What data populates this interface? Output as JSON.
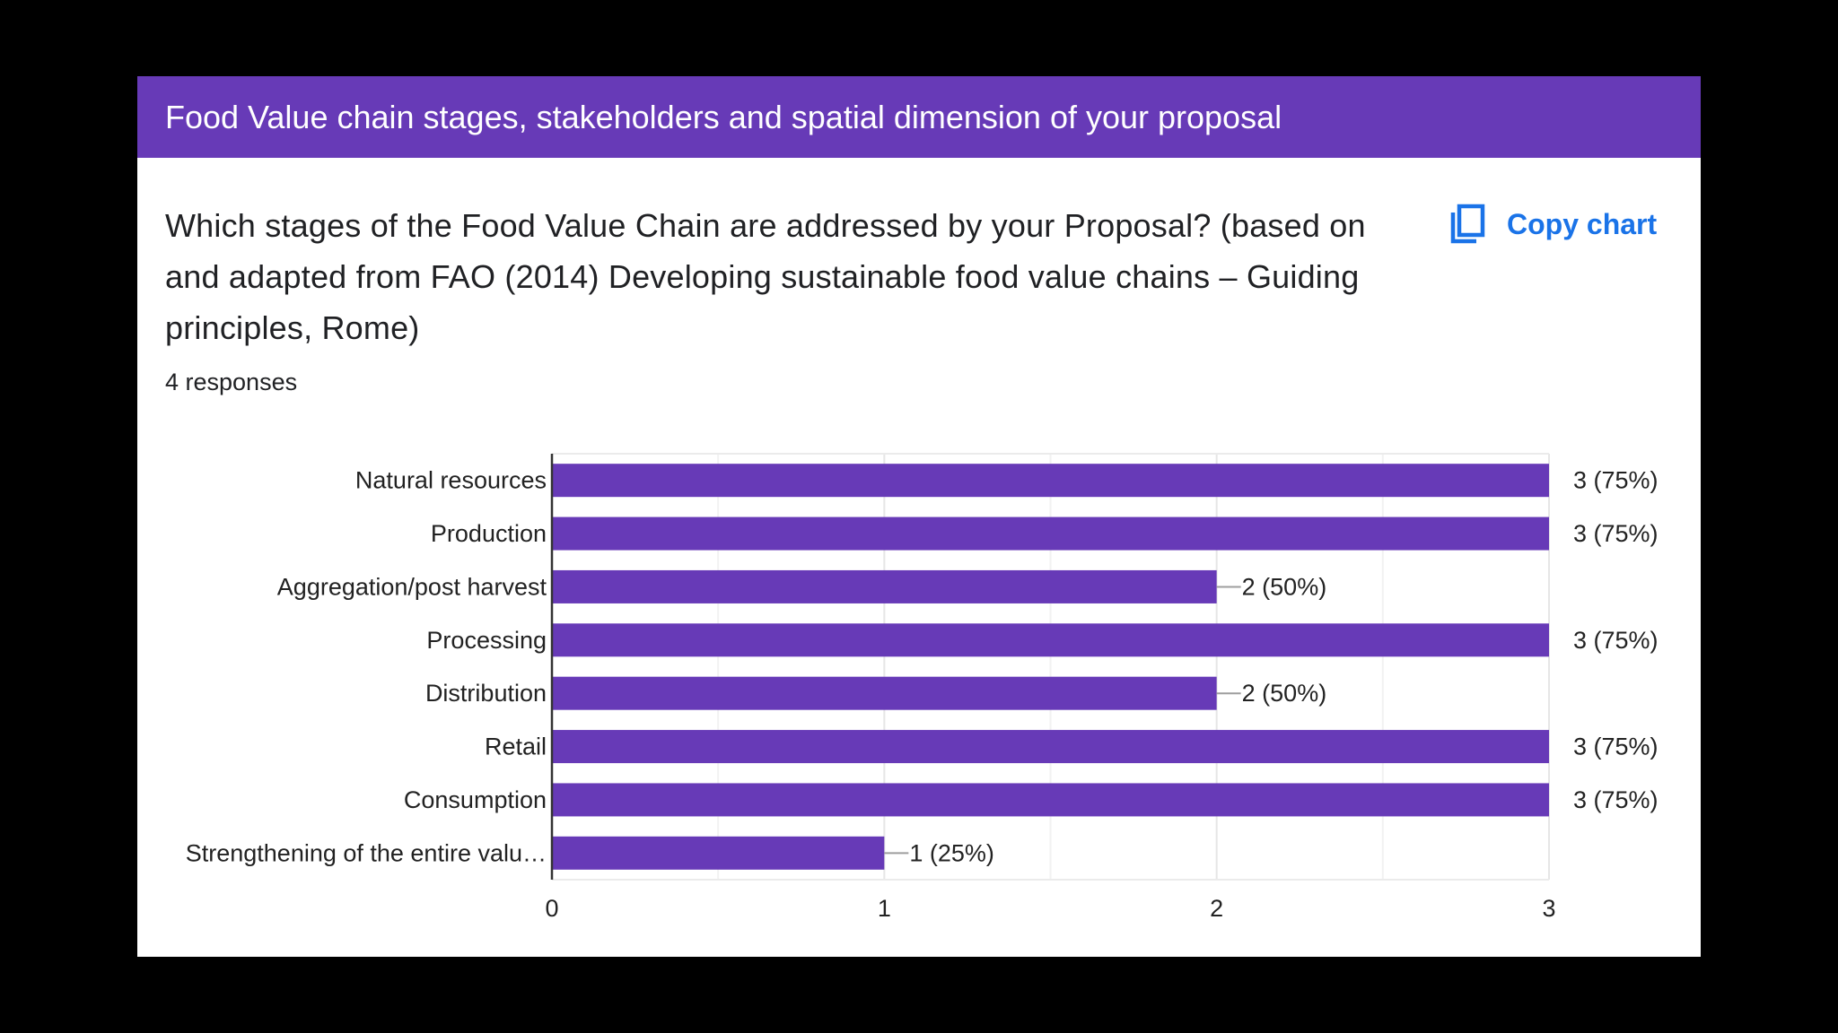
{
  "section_title": "Food Value chain stages, stakeholders and spatial dimension of your proposal",
  "question": "Which stages of the Food Value Chain are addressed by your Proposal? (based on and adapted from FAO (2014) Developing sustainable food value chains – Guiding principles, Rome)",
  "responses_text": "4 responses",
  "copy_chart": {
    "label": "Copy chart",
    "icon": "copy-icon"
  },
  "colors": {
    "header": "#673ab7",
    "bar": "#673ab7",
    "link": "#1a73e8"
  },
  "chart_data": {
    "type": "bar",
    "orientation": "horizontal",
    "categories": [
      "Natural resources",
      "Production",
      "Aggregation/post harvest",
      "Processing",
      "Distribution",
      "Retail",
      "Consumption",
      "Strengthening of the entire valu…"
    ],
    "values": [
      3,
      3,
      2,
      3,
      2,
      3,
      3,
      1
    ],
    "data_labels": [
      "3 (75%)",
      "3 (75%)",
      "2 (50%)",
      "3 (75%)",
      "2 (50%)",
      "3 (75%)",
      "3 (75%)",
      "1 (25%)"
    ],
    "x_ticks": [
      "0",
      "1",
      "2",
      "3"
    ],
    "xlim": [
      0,
      3
    ],
    "grid": true,
    "title": "",
    "xlabel": "",
    "ylabel": ""
  }
}
